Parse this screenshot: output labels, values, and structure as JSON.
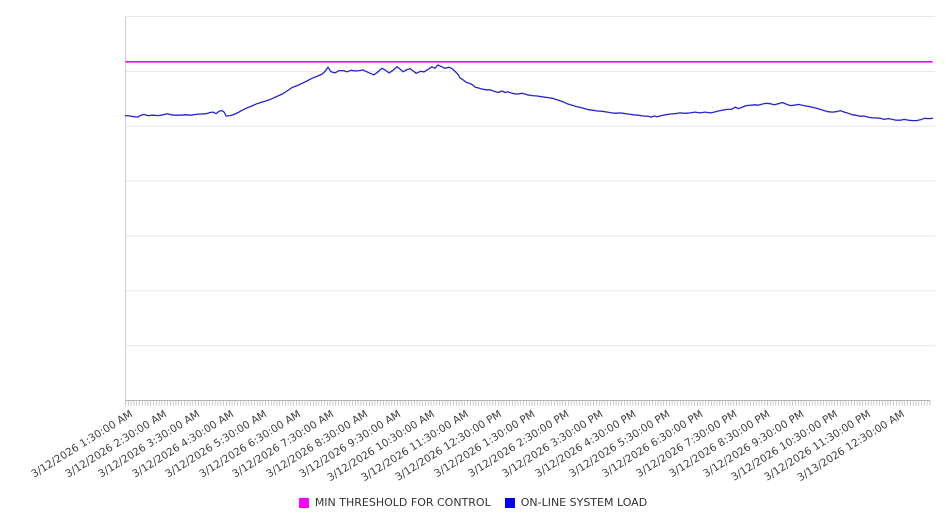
{
  "chart_data": {
    "type": "line",
    "title": "",
    "background": "#ffffff",
    "legend_position": "bottom-center",
    "x_axis": {
      "label_rotation_deg": -32,
      "minor_tick_count": 288,
      "tick_labels": [
        "3/12/2026 1:30:00 AM",
        "3/12/2026 2:30:00 AM",
        "3/12/2026 3:30:00 AM",
        "3/12/2026 4:30:00 AM",
        "3/12/2026 5:30:00 AM",
        "3/12/2026 6:30:00 AM",
        "3/12/2026 7:30:00 AM",
        "3/12/2026 8:30:00 AM",
        "3/12/2026 9:30:00 AM",
        "3/12/2026 10:30:00 AM",
        "3/12/2026 11:30:00 AM",
        "3/12/2026 12:30:00 PM",
        "3/12/2026 1:30:00 PM",
        "3/12/2026 2:30:00 PM",
        "3/12/2026 3:30:00 PM",
        "3/12/2026 4:30:00 PM",
        "3/12/2026 5:30:00 PM",
        "3/12/2026 6:30:00 PM",
        "3/12/2026 7:30:00 PM",
        "3/12/2026 8:30:00 PM",
        "3/12/2026 9:30:00 PM",
        "3/12/2026 10:30:00 PM",
        "3/12/2026 11:30:00 PM",
        "3/13/2026 12:30:00 AM"
      ],
      "hours_span": 24.07
    },
    "y_axis": {
      "labels_visible": false,
      "gridline_divisions": 7,
      "unit": "percent_of_plot_height",
      "range": [
        0,
        100
      ]
    },
    "colors": {
      "gridline": "#e7e7e7",
      "axis": "#b3b3b3",
      "left_axis": "#cccccc",
      "label_text": "#3f3f3f"
    },
    "series": [
      {
        "name": "MIN THRESHOLD FOR CONTROL",
        "style": "constant-line",
        "color": "#ff00ff",
        "line_color": "#f000f0",
        "value": 88.2
      },
      {
        "name": "ON-LINE SYSTEM LOAD",
        "style": "line",
        "color": "#0000ee",
        "line_color": "#2424cb",
        "points": [
          [
            0,
            74.2
          ],
          [
            0.13,
            74.1
          ],
          [
            0.25,
            73.9
          ],
          [
            0.37,
            73.8
          ],
          [
            0.46,
            74.3
          ],
          [
            0.55,
            74.5
          ],
          [
            0.67,
            74.2
          ],
          [
            0.82,
            74.3
          ],
          [
            0.97,
            74.2
          ],
          [
            1.12,
            74.4
          ],
          [
            1.24,
            74.7
          ],
          [
            1.36,
            74.4
          ],
          [
            1.48,
            74.3
          ],
          [
            1.63,
            74.3
          ],
          [
            1.8,
            74.4
          ],
          [
            1.95,
            74.3
          ],
          [
            2.1,
            74.5
          ],
          [
            2.25,
            74.6
          ],
          [
            2.4,
            74.7
          ],
          [
            2.52,
            75
          ],
          [
            2.61,
            75.1
          ],
          [
            2.7,
            74.7
          ],
          [
            2.79,
            75.3
          ],
          [
            2.88,
            75.5
          ],
          [
            2.94,
            75.1
          ],
          [
            3,
            74.1
          ],
          [
            3.12,
            74.2
          ],
          [
            3.24,
            74.5
          ],
          [
            3.36,
            75
          ],
          [
            3.48,
            75.6
          ],
          [
            3.62,
            76.2
          ],
          [
            3.77,
            76.7
          ],
          [
            3.92,
            77.3
          ],
          [
            4.07,
            77.7
          ],
          [
            4.22,
            78.1
          ],
          [
            4.37,
            78.6
          ],
          [
            4.52,
            79.2
          ],
          [
            4.67,
            79.8
          ],
          [
            4.82,
            80.6
          ],
          [
            4.97,
            81.5
          ],
          [
            5.12,
            82
          ],
          [
            5.27,
            82.6
          ],
          [
            5.41,
            83.2
          ],
          [
            5.56,
            83.9
          ],
          [
            5.71,
            84.4
          ],
          [
            5.86,
            85
          ],
          [
            5.95,
            85.7
          ],
          [
            6.04,
            86.8
          ],
          [
            6.13,
            85.6
          ],
          [
            6.25,
            85.3
          ],
          [
            6.37,
            85.9
          ],
          [
            6.49,
            85.9
          ],
          [
            6.61,
            85.6
          ],
          [
            6.73,
            86
          ],
          [
            6.85,
            85.8
          ],
          [
            6.97,
            85.9
          ],
          [
            7.08,
            86.1
          ],
          [
            7.2,
            85.6
          ],
          [
            7.32,
            85.1
          ],
          [
            7.41,
            84.8
          ],
          [
            7.53,
            85.6
          ],
          [
            7.65,
            86.5
          ],
          [
            7.77,
            85.9
          ],
          [
            7.86,
            85.3
          ],
          [
            7.98,
            86
          ],
          [
            8.1,
            86.9
          ],
          [
            8.19,
            86.3
          ],
          [
            8.28,
            85.6
          ],
          [
            8.4,
            86.2
          ],
          [
            8.49,
            86.4
          ],
          [
            8.58,
            85.8
          ],
          [
            8.67,
            85.2
          ],
          [
            8.79,
            85.7
          ],
          [
            8.91,
            85.6
          ],
          [
            9.02,
            86.2
          ],
          [
            9.14,
            86.9
          ],
          [
            9.23,
            86.5
          ],
          [
            9.32,
            87.4
          ],
          [
            9.41,
            87
          ],
          [
            9.53,
            86.5
          ],
          [
            9.65,
            86.8
          ],
          [
            9.74,
            86.4
          ],
          [
            9.83,
            85.7
          ],
          [
            9.92,
            84.9
          ],
          [
            9.98,
            84
          ],
          [
            10.07,
            83.5
          ],
          [
            10.16,
            82.9
          ],
          [
            10.25,
            82.6
          ],
          [
            10.34,
            82.3
          ],
          [
            10.43,
            81.6
          ],
          [
            10.52,
            81.4
          ],
          [
            10.64,
            81.1
          ],
          [
            10.76,
            80.9
          ],
          [
            10.88,
            80.9
          ],
          [
            11,
            80.5
          ],
          [
            11.11,
            80.2
          ],
          [
            11.23,
            80.6
          ],
          [
            11.32,
            80.2
          ],
          [
            11.41,
            80.4
          ],
          [
            11.53,
            80
          ],
          [
            11.68,
            79.8
          ],
          [
            11.83,
            80
          ],
          [
            11.98,
            79.6
          ],
          [
            12.13,
            79.4
          ],
          [
            12.28,
            79.3
          ],
          [
            12.43,
            79.1
          ],
          [
            12.58,
            78.9
          ],
          [
            12.73,
            78.7
          ],
          [
            12.87,
            78.3
          ],
          [
            13.02,
            77.9
          ],
          [
            13.17,
            77.3
          ],
          [
            13.32,
            76.9
          ],
          [
            13.47,
            76.5
          ],
          [
            13.62,
            76.2
          ],
          [
            13.77,
            75.8
          ],
          [
            13.92,
            75.6
          ],
          [
            14.07,
            75.4
          ],
          [
            14.22,
            75.3
          ],
          [
            14.37,
            75.1
          ],
          [
            14.51,
            74.9
          ],
          [
            14.63,
            74.8
          ],
          [
            14.72,
            74.9
          ],
          [
            14.84,
            74.8
          ],
          [
            14.99,
            74.6
          ],
          [
            15.14,
            74.4
          ],
          [
            15.29,
            74.3
          ],
          [
            15.44,
            74.1
          ],
          [
            15.59,
            74
          ],
          [
            15.68,
            73.8
          ],
          [
            15.77,
            74.1
          ],
          [
            15.86,
            73.9
          ],
          [
            15.98,
            74.2
          ],
          [
            16.1,
            74.4
          ],
          [
            16.25,
            74.6
          ],
          [
            16.39,
            74.7
          ],
          [
            16.54,
            74.9
          ],
          [
            16.69,
            74.8
          ],
          [
            16.84,
            74.9
          ],
          [
            16.99,
            75.1
          ],
          [
            17.14,
            74.9
          ],
          [
            17.29,
            75.1
          ],
          [
            17.44,
            74.9
          ],
          [
            17.56,
            75.1
          ],
          [
            17.68,
            75.4
          ],
          [
            17.8,
            75.6
          ],
          [
            17.95,
            75.8
          ],
          [
            18.07,
            75.8
          ],
          [
            18.19,
            76.4
          ],
          [
            18.28,
            76
          ],
          [
            18.4,
            76.4
          ],
          [
            18.51,
            76.8
          ],
          [
            18.66,
            76.9
          ],
          [
            18.78,
            77
          ],
          [
            18.87,
            76.9
          ],
          [
            18.99,
            77.2
          ],
          [
            19.11,
            77.4
          ],
          [
            19.23,
            77.3
          ],
          [
            19.35,
            77
          ],
          [
            19.47,
            77.3
          ],
          [
            19.59,
            77.6
          ],
          [
            19.71,
            77.2
          ],
          [
            19.83,
            76.8
          ],
          [
            19.95,
            76.9
          ],
          [
            20.06,
            77.1
          ],
          [
            20.18,
            76.9
          ],
          [
            20.3,
            76.7
          ],
          [
            20.42,
            76.5
          ],
          [
            20.57,
            76.2
          ],
          [
            20.72,
            75.8
          ],
          [
            20.84,
            75.5
          ],
          [
            20.96,
            75.2
          ],
          [
            21.08,
            75.1
          ],
          [
            21.2,
            75.2
          ],
          [
            21.32,
            75.5
          ],
          [
            21.44,
            75.1
          ],
          [
            21.56,
            74.8
          ],
          [
            21.68,
            74.4
          ],
          [
            21.79,
            74.3
          ],
          [
            21.91,
            74
          ],
          [
            22.03,
            74.1
          ],
          [
            22.15,
            73.8
          ],
          [
            22.27,
            73.6
          ],
          [
            22.39,
            73.6
          ],
          [
            22.51,
            73.5
          ],
          [
            22.63,
            73.2
          ],
          [
            22.75,
            73.4
          ],
          [
            22.87,
            73.2
          ],
          [
            22.99,
            73
          ],
          [
            23.11,
            73
          ],
          [
            23.23,
            73.2
          ],
          [
            23.35,
            73
          ],
          [
            23.47,
            72.9
          ],
          [
            23.59,
            72.9
          ],
          [
            23.71,
            73.1
          ],
          [
            23.83,
            73.5
          ],
          [
            23.95,
            73.4
          ],
          [
            24.07,
            73.5
          ]
        ]
      }
    ]
  }
}
